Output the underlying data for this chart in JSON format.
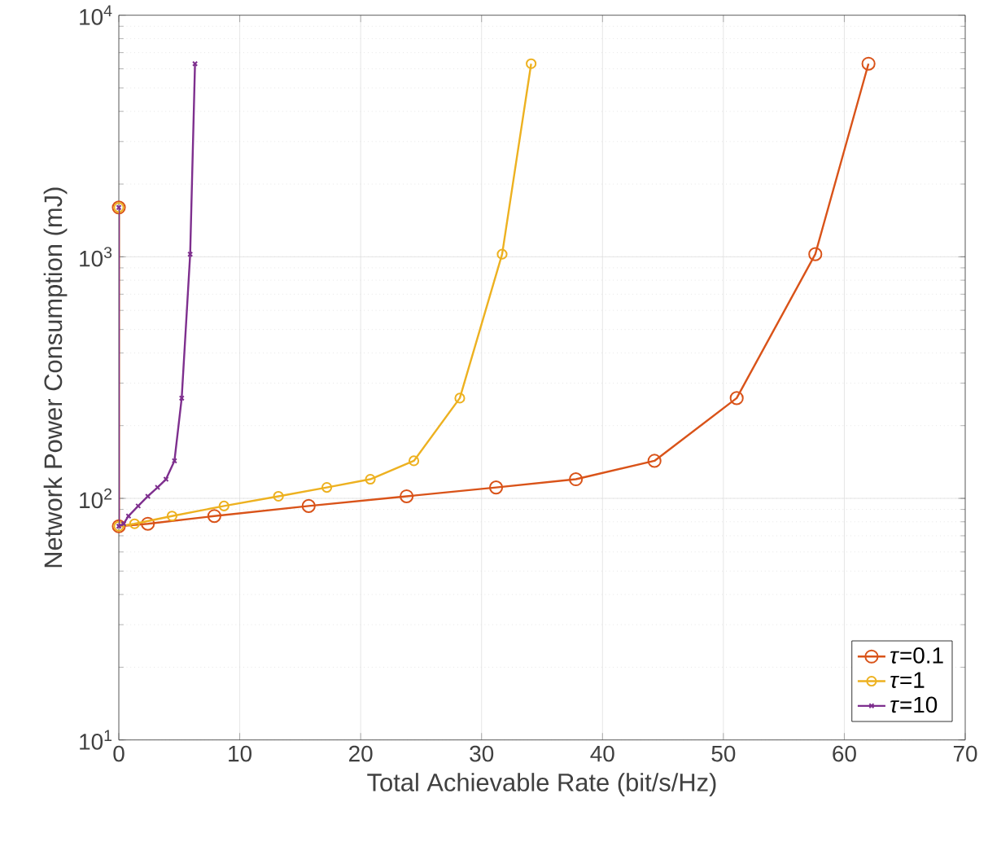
{
  "chart_data": {
    "type": "line",
    "xlabel": "Total Achievable Rate (bit/s/Hz)",
    "ylabel": "Network Power Consumption (mJ)",
    "log": "y",
    "xlim": [
      0,
      70
    ],
    "xticks": [
      0,
      10,
      20,
      30,
      40,
      50,
      60,
      70
    ],
    "ylim": [
      10,
      10000
    ],
    "yticks": [
      {
        "value": 10,
        "label": "10$^{1}$"
      },
      {
        "value": 100,
        "label": "10$^{2}$"
      },
      {
        "value": 1000,
        "label": "10$^{3}$"
      },
      {
        "value": 10000,
        "label": "10$^{4}$"
      }
    ],
    "grid": true,
    "legend": "bottom right",
    "line_style": "solid",
    "series": [
      {
        "name": "*τ*=0.1",
        "color": "#d95319",
        "marker": "circle",
        "x": [
          0,
          0,
          2.4,
          7.9,
          15.7,
          23.8,
          31.2,
          37.8,
          44.3,
          51.1,
          57.6,
          62.0
        ],
        "values": [
          1600,
          76.7,
          78.5,
          84.5,
          93,
          102,
          111,
          120,
          143,
          260,
          1025,
          6300
        ]
      },
      {
        "name": "*τ*=1",
        "color": "#edb120",
        "marker": "circle",
        "x": [
          0,
          0,
          1.3,
          4.4,
          8.7,
          13.2,
          17.2,
          20.8,
          24.4,
          28.2,
          31.7,
          34.1
        ],
        "values": [
          1600,
          76.7,
          78.5,
          84.5,
          93,
          102,
          111,
          120,
          143,
          260,
          1025,
          6300
        ]
      },
      {
        "name": "*τ*=10",
        "color": "#7e2f8e",
        "marker": "cross",
        "x": [
          0,
          0,
          0.4,
          0.8,
          1.6,
          2.4,
          3.2,
          3.9,
          4.6,
          5.2,
          5.9,
          6.3
        ],
        "values": [
          1600,
          76.7,
          78.5,
          84.5,
          93,
          102,
          111,
          120,
          143,
          260,
          1025,
          6300
        ]
      }
    ]
  }
}
